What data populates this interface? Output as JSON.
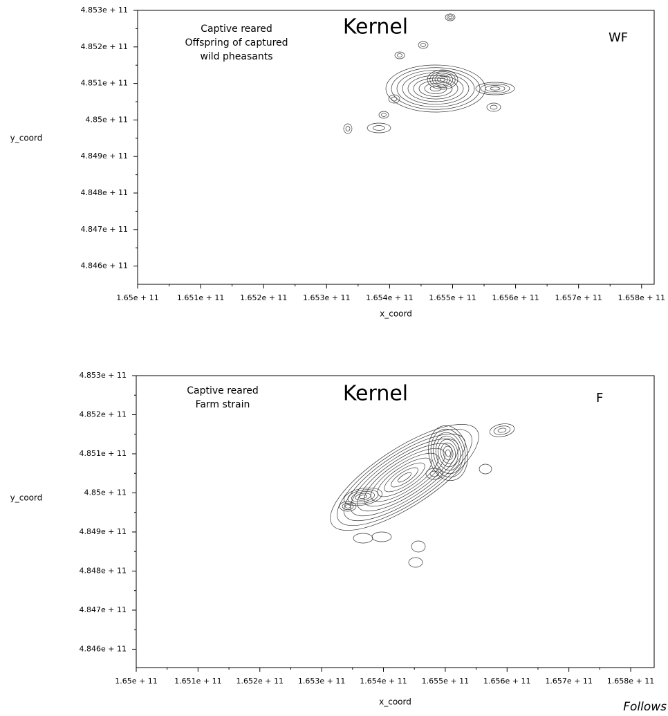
{
  "chart_data": [
    {
      "type": "contour",
      "title": "Kernel",
      "annotations": [
        "Captive reared",
        "Offspring of captured",
        "wild pheasants"
      ],
      "tag": "WF",
      "x_label": "x_coord",
      "y_label": "y_coord",
      "xlim": [
        165000000000,
        165820000000
      ],
      "ylim": [
        484550000000,
        485300000000
      ],
      "xticks": [
        {
          "value": 165000000000,
          "label": "1.65e + 11"
        },
        {
          "value": 165100000000,
          "label": "1.651e + 11"
        },
        {
          "value": 165200000000,
          "label": "1.652e + 11"
        },
        {
          "value": 165300000000,
          "label": "1.653e + 11"
        },
        {
          "value": 165400000000,
          "label": "1.654e + 11"
        },
        {
          "value": 165500000000,
          "label": "1.655e + 11"
        },
        {
          "value": 165600000000,
          "label": "1.656e + 11"
        },
        {
          "value": 165700000000,
          "label": "1.657e + 11"
        },
        {
          "value": 165800000000,
          "label": "1.658e + 11"
        }
      ],
      "yticks": [
        {
          "value": 484600000000,
          "label": "4.846e + 11"
        },
        {
          "value": 484700000000,
          "label": "4.847e + 11"
        },
        {
          "value": 484800000000,
          "label": "4.848e + 11"
        },
        {
          "value": 484900000000,
          "label": "4.849e + 11"
        },
        {
          "value": 485000000000,
          "label": "4.85e + 11"
        },
        {
          "value": 485100000000,
          "label": "4.851e + 11"
        },
        {
          "value": 485200000000,
          "label": "4.852e + 11"
        },
        {
          "value": 485300000000,
          "label": "4.853e + 11"
        }
      ]
    },
    {
      "type": "contour",
      "title": "Kernel",
      "annotations": [
        "Captive reared",
        "Farm strain"
      ],
      "tag": "F",
      "x_label": "x_coord",
      "y_label": "y_coord",
      "xlim": [
        165000000000,
        165838000000
      ],
      "ylim": [
        484553000000,
        485300000000
      ],
      "xticks": [
        {
          "value": 165000000000,
          "label": "1.65e + 11"
        },
        {
          "value": 165100000000,
          "label": "1.651e + 11"
        },
        {
          "value": 165200000000,
          "label": "1.652e + 11"
        },
        {
          "value": 165300000000,
          "label": "1.653e + 11"
        },
        {
          "value": 165400000000,
          "label": "1.654e + 11"
        },
        {
          "value": 165500000000,
          "label": "1.655e + 11"
        },
        {
          "value": 165600000000,
          "label": "1.656e + 11"
        },
        {
          "value": 165700000000,
          "label": "1.657e + 11"
        },
        {
          "value": 165800000000,
          "label": "1.658e + 11"
        }
      ],
      "yticks": [
        {
          "value": 484600000000,
          "label": "4.846e + 11"
        },
        {
          "value": 484700000000,
          "label": "4.847e + 11"
        },
        {
          "value": 484800000000,
          "label": "4.848e + 11"
        },
        {
          "value": 484900000000,
          "label": "4.849e + 11"
        },
        {
          "value": 485000000000,
          "label": "4.85e + 11"
        },
        {
          "value": 485100000000,
          "label": "4.851e + 11"
        },
        {
          "value": 485200000000,
          "label": "4.852e + 11"
        },
        {
          "value": 485300000000,
          "label": "4.853e + 11"
        }
      ]
    }
  ],
  "footer": "Follows"
}
